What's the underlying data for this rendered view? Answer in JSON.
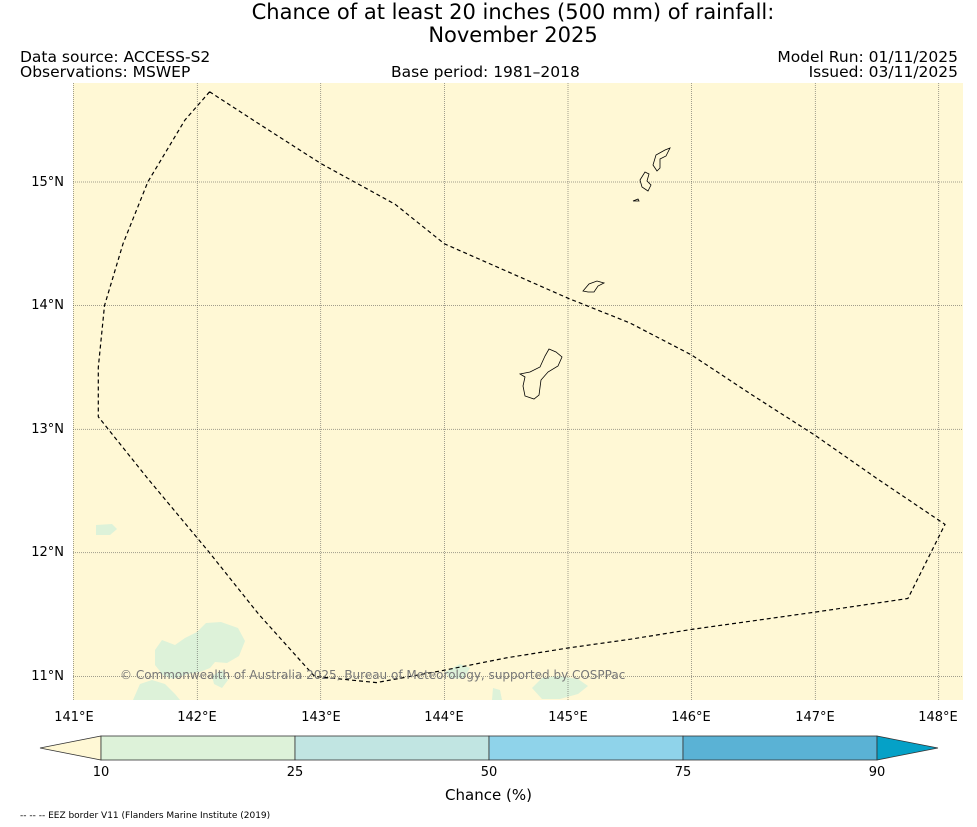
{
  "title": {
    "line1": "Chance of at least 20 inches (500  mm) of rainfall:",
    "line2": "November 2025"
  },
  "meta": {
    "data_source": "Data source: ACCESS-S2",
    "observations": "Observations: MSWEP",
    "base_period": "Base period: 1981–2018",
    "model_run": "Model Run: 01/11/2025",
    "issued": "Issued: 03/11/2025"
  },
  "map": {
    "background_color": "#fff8d5",
    "lat_labels": [
      "15°N",
      "14°N",
      "13°N",
      "12°N",
      "11°N"
    ],
    "lon_labels": [
      "141°E",
      "142°E",
      "143°E",
      "144°E",
      "145°E",
      "146°E",
      "147°E",
      "148°E"
    ],
    "credit": "© Commonwealth of Australia 2025, Bureau of Meteorology, supported by COSPPac",
    "eez_boundary": [
      [
        142.1,
        15.73
      ],
      [
        141.9,
        15.5
      ],
      [
        141.6,
        15.0
      ],
      [
        141.4,
        14.5
      ],
      [
        141.25,
        14.0
      ],
      [
        141.2,
        13.5
      ],
      [
        141.2,
        13.1
      ],
      [
        141.6,
        12.6
      ],
      [
        142.1,
        12.0
      ],
      [
        142.5,
        11.5
      ],
      [
        142.95,
        11.0
      ],
      [
        143.45,
        10.95
      ],
      [
        144.0,
        11.05
      ],
      [
        144.5,
        11.15
      ],
      [
        145.0,
        11.23
      ],
      [
        145.5,
        11.3
      ],
      [
        146.0,
        11.38
      ],
      [
        146.5,
        11.45
      ],
      [
        147.0,
        11.52
      ],
      [
        147.75,
        11.63
      ],
      [
        148.05,
        12.23
      ],
      [
        147.5,
        12.6
      ],
      [
        147.0,
        12.95
      ],
      [
        146.5,
        13.27
      ],
      [
        146.0,
        13.6
      ],
      [
        145.5,
        13.86
      ],
      [
        145.0,
        14.06
      ],
      [
        144.5,
        14.28
      ],
      [
        144.0,
        14.5
      ],
      [
        143.6,
        14.82
      ],
      [
        143.0,
        15.15
      ],
      [
        142.5,
        15.47
      ],
      [
        142.1,
        15.73
      ]
    ]
  },
  "colorbar": {
    "label": "Chance (%)",
    "ticks": [
      "10",
      "25",
      "50",
      "75",
      "90"
    ],
    "colors": [
      "#fff8d5",
      "#ddf2d9",
      "#c1e5e2",
      "#8fd3ea",
      "#5ab2d5",
      "#05a1c7"
    ]
  },
  "footnote": "-- -- -- EEZ border V11 (Flanders Marine Institute (2019)"
}
